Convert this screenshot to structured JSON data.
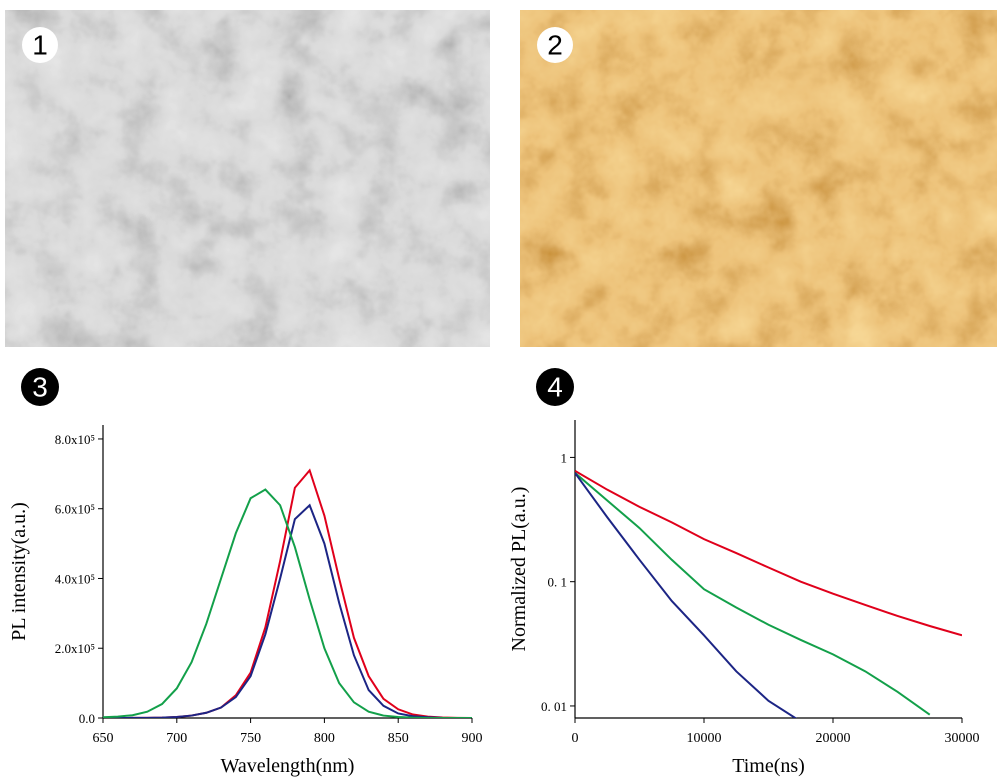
{
  "image_labels": [
    "1",
    "2"
  ],
  "chart_data": [
    {
      "type": "line",
      "label": "3",
      "x_label": "Wavelength(nm)",
      "y_label": "PL intensity(a.u.)",
      "xlim": [
        650,
        900
      ],
      "xticks": [
        650,
        700,
        750,
        800,
        850,
        900
      ],
      "ylim": [
        0,
        840000
      ],
      "yticks": [
        {
          "value": 0,
          "label": "0.0"
        },
        {
          "value": 200000,
          "label": "2.0x10⁵"
        },
        {
          "value": 400000,
          "label": "4.0x10⁵"
        },
        {
          "value": 600000,
          "label": "6.0x10⁵"
        },
        {
          "value": 800000,
          "label": "8.0x10⁵"
        }
      ],
      "log_y": false,
      "x": [
        650,
        660,
        670,
        680,
        690,
        700,
        710,
        720,
        730,
        740,
        750,
        760,
        770,
        780,
        790,
        800,
        810,
        820,
        830,
        840,
        850,
        860,
        870,
        880,
        890,
        900
      ],
      "series": [
        {
          "name": "red",
          "color": "#e0001b",
          "values": [
            0,
            0,
            200,
            500,
            1000,
            3000,
            7000,
            15000,
            30000,
            65000,
            130000,
            260000,
            450000,
            660000,
            710000,
            580000,
            400000,
            230000,
            120000,
            55000,
            25000,
            10000,
            4000,
            1500,
            500,
            0
          ]
        },
        {
          "name": "blue",
          "color": "#1c2585",
          "values": [
            0,
            0,
            200,
            500,
            1000,
            3000,
            7000,
            15000,
            30000,
            60000,
            120000,
            240000,
            400000,
            570000,
            610000,
            500000,
            330000,
            180000,
            80000,
            35000,
            13000,
            5000,
            2000,
            500,
            0,
            0
          ]
        },
        {
          "name": "green",
          "color": "#13a04a",
          "values": [
            2000,
            4000,
            8000,
            18000,
            40000,
            85000,
            160000,
            270000,
            400000,
            530000,
            630000,
            655000,
            610000,
            490000,
            340000,
            200000,
            100000,
            45000,
            18000,
            7000,
            3000,
            1000,
            0,
            0,
            0,
            0
          ]
        }
      ]
    },
    {
      "type": "line",
      "label": "4",
      "x_label": "Time(ns)",
      "y_label": "Normalized PL(a.u.)",
      "xlim": [
        0,
        30000
      ],
      "xticks": [
        0,
        10000,
        20000,
        30000
      ],
      "ylim": [
        0.008,
        2
      ],
      "log_y": true,
      "yticks": [
        {
          "value": 0.01,
          "label": "0. 01"
        },
        {
          "value": 0.1,
          "label": "0. 1"
        },
        1
      ],
      "x": [
        0,
        2500,
        5000,
        7500,
        10000,
        12500,
        15000,
        17500,
        20000,
        22500,
        25000,
        27500,
        30000
      ],
      "series": [
        {
          "name": "red",
          "color": "#e0001b",
          "values": [
            0.78,
            0.55,
            0.4,
            0.3,
            0.22,
            0.17,
            0.13,
            0.1,
            0.08,
            0.065,
            0.053,
            0.044,
            0.037
          ]
        },
        {
          "name": "green",
          "color": "#13a04a",
          "values": [
            0.75,
            0.45,
            0.27,
            0.15,
            0.087,
            0.062,
            0.045,
            0.034,
            0.026,
            0.019,
            0.013,
            0.0085,
            null
          ]
        },
        {
          "name": "blue",
          "color": "#1c2585",
          "values": [
            0.75,
            0.33,
            0.15,
            0.07,
            0.037,
            0.019,
            0.011,
            0.0075,
            null,
            null,
            null,
            null,
            null
          ]
        }
      ]
    }
  ]
}
